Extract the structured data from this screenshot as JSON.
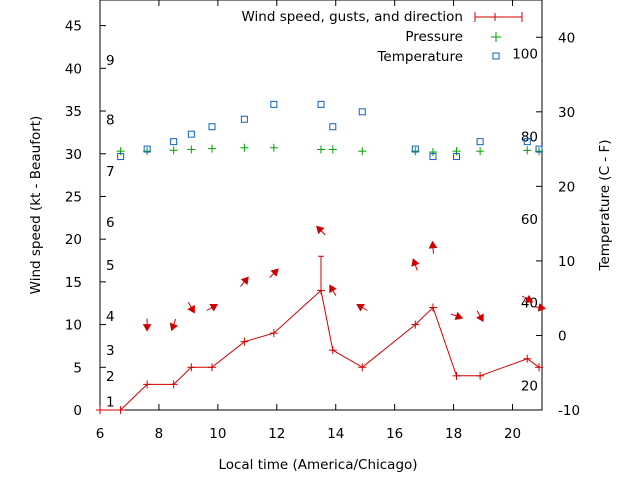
{
  "chart_data": {
    "type": "line",
    "xlabel": "Local time (America/Chicago)",
    "ylabel_left": "Wind speed (kt - Beaufort)",
    "ylabel_right": "Temperature (C - F)",
    "xlim": [
      6,
      21
    ],
    "ylim_left": [
      0,
      48
    ],
    "ylim_right": [
      -10,
      45
    ],
    "x_ticks": [
      6,
      8,
      10,
      12,
      14,
      16,
      18,
      20
    ],
    "y_left_ticks": [
      0,
      5,
      10,
      15,
      20,
      25,
      30,
      35,
      40,
      45
    ],
    "y_right_ticks": [
      -10,
      0,
      10,
      20,
      30,
      40
    ],
    "beaufort_labels": [
      {
        "label": "1",
        "y": 1
      },
      {
        "label": "2",
        "y": 4
      },
      {
        "label": "3",
        "y": 7
      },
      {
        "label": "4",
        "y": 11
      },
      {
        "label": "5",
        "y": 17
      },
      {
        "label": "6",
        "y": 22
      },
      {
        "label": "7",
        "y": 28
      },
      {
        "label": "8",
        "y": 34
      },
      {
        "label": "9",
        "y": 41
      }
    ],
    "fahrenheit_labels": [
      {
        "label": "20",
        "t": -6.7
      },
      {
        "label": "40",
        "t": 4.4
      },
      {
        "label": "60",
        "t": 15.6
      },
      {
        "label": "80",
        "t": 26.7
      },
      {
        "label": "100",
        "t": 37.8
      }
    ],
    "legend": {
      "wind": "Wind speed, gusts, and direction",
      "pressure": "Pressure",
      "temperature": "Temperature"
    },
    "colors": {
      "wind": "#d00000",
      "pressure": "#00a000",
      "temperature": "#1060c0"
    },
    "series": [
      {
        "name": "Wind speed, gusts, and direction",
        "x": [
          6,
          6.7,
          7.6,
          8.5,
          9.1,
          9.8,
          10.9,
          11.9,
          13.5,
          13.9,
          14.9,
          16.7,
          17.3,
          18.1,
          18.9,
          20.5,
          20.9
        ],
        "values": [
          0,
          0,
          3,
          3,
          5,
          5,
          8,
          9,
          14,
          7,
          5,
          10,
          12,
          4,
          4,
          6,
          5
        ],
        "gusts": [
          null,
          null,
          null,
          null,
          null,
          null,
          null,
          null,
          18,
          null,
          null,
          null,
          null,
          null,
          null,
          null,
          null
        ],
        "direction_deg": [
          null,
          null,
          360,
          20,
          330,
          240,
          220,
          225,
          135,
          150,
          120,
          160,
          175,
          290,
          330,
          300,
          280
        ]
      },
      {
        "name": "Pressure",
        "x": [
          6.7,
          7.6,
          8.5,
          9.1,
          9.8,
          10.9,
          11.9,
          13.5,
          13.9,
          14.9,
          16.7,
          17.3,
          18.1,
          18.9,
          20.5,
          20.9
        ],
        "values": [
          30.3,
          30.3,
          30.4,
          30.5,
          30.6,
          30.7,
          30.7,
          30.5,
          30.5,
          30.3,
          30.3,
          30.2,
          30.3,
          30.3,
          30.4,
          30.3
        ]
      },
      {
        "name": "Temperature",
        "x": [
          6.7,
          7.6,
          8.5,
          9.1,
          9.8,
          10.9,
          11.9,
          13.5,
          13.9,
          14.9,
          16.7,
          17.3,
          18.1,
          18.9,
          20.5,
          20.9
        ],
        "values": [
          24,
          25,
          26,
          27,
          28,
          29,
          31,
          31,
          28,
          30,
          25,
          24,
          24,
          26,
          26,
          25
        ]
      }
    ]
  }
}
